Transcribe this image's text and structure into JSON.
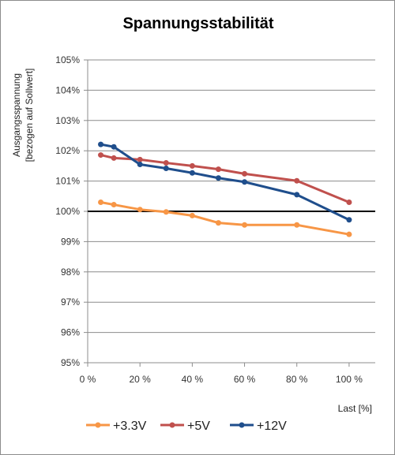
{
  "chart_data": {
    "type": "line",
    "title": "Spannungsstabilität",
    "xlabel": "Last [%]",
    "ylabel_lines": [
      "Ausgangsspannung",
      "[bezogen auf Sollwert]"
    ],
    "xlim": [
      0,
      110
    ],
    "ylim": [
      95,
      105
    ],
    "xticks": [
      0,
      20,
      40,
      60,
      80,
      100
    ],
    "xtick_labels": [
      "0 %",
      "20 %",
      "40 %",
      "60 %",
      "80 %",
      "100 %"
    ],
    "yticks": [
      95,
      96,
      97,
      98,
      99,
      100,
      101,
      102,
      103,
      104,
      105
    ],
    "ytick_labels": [
      "95%",
      "96%",
      "97%",
      "98%",
      "99%",
      "100%",
      "101%",
      "102%",
      "103%",
      "104%",
      "105%"
    ],
    "grid": "horizontal",
    "legend_position": "bottom",
    "reference_line": {
      "y": 100,
      "x": [
        0,
        110
      ],
      "color": "#000000"
    },
    "series": [
      {
        "name": "+3.3V",
        "color": "#f79646",
        "x": [
          5,
          10,
          20,
          30,
          40,
          50,
          60,
          80,
          100
        ],
        "y": [
          100.3,
          100.22,
          100.06,
          99.98,
          99.86,
          99.62,
          99.55,
          99.55,
          99.24
        ]
      },
      {
        "name": "+5V",
        "color": "#c0504d",
        "x": [
          5,
          10,
          20,
          30,
          40,
          50,
          60,
          80,
          100
        ],
        "y": [
          101.86,
          101.76,
          101.71,
          101.6,
          101.5,
          101.39,
          101.24,
          101.01,
          100.3
        ]
      },
      {
        "name": "+12V",
        "color": "#1f4e8c",
        "x": [
          5,
          10,
          20,
          30,
          40,
          50,
          60,
          80,
          100
        ],
        "y": [
          102.21,
          102.13,
          101.55,
          101.42,
          101.27,
          101.1,
          100.97,
          100.55,
          99.72
        ]
      }
    ]
  }
}
